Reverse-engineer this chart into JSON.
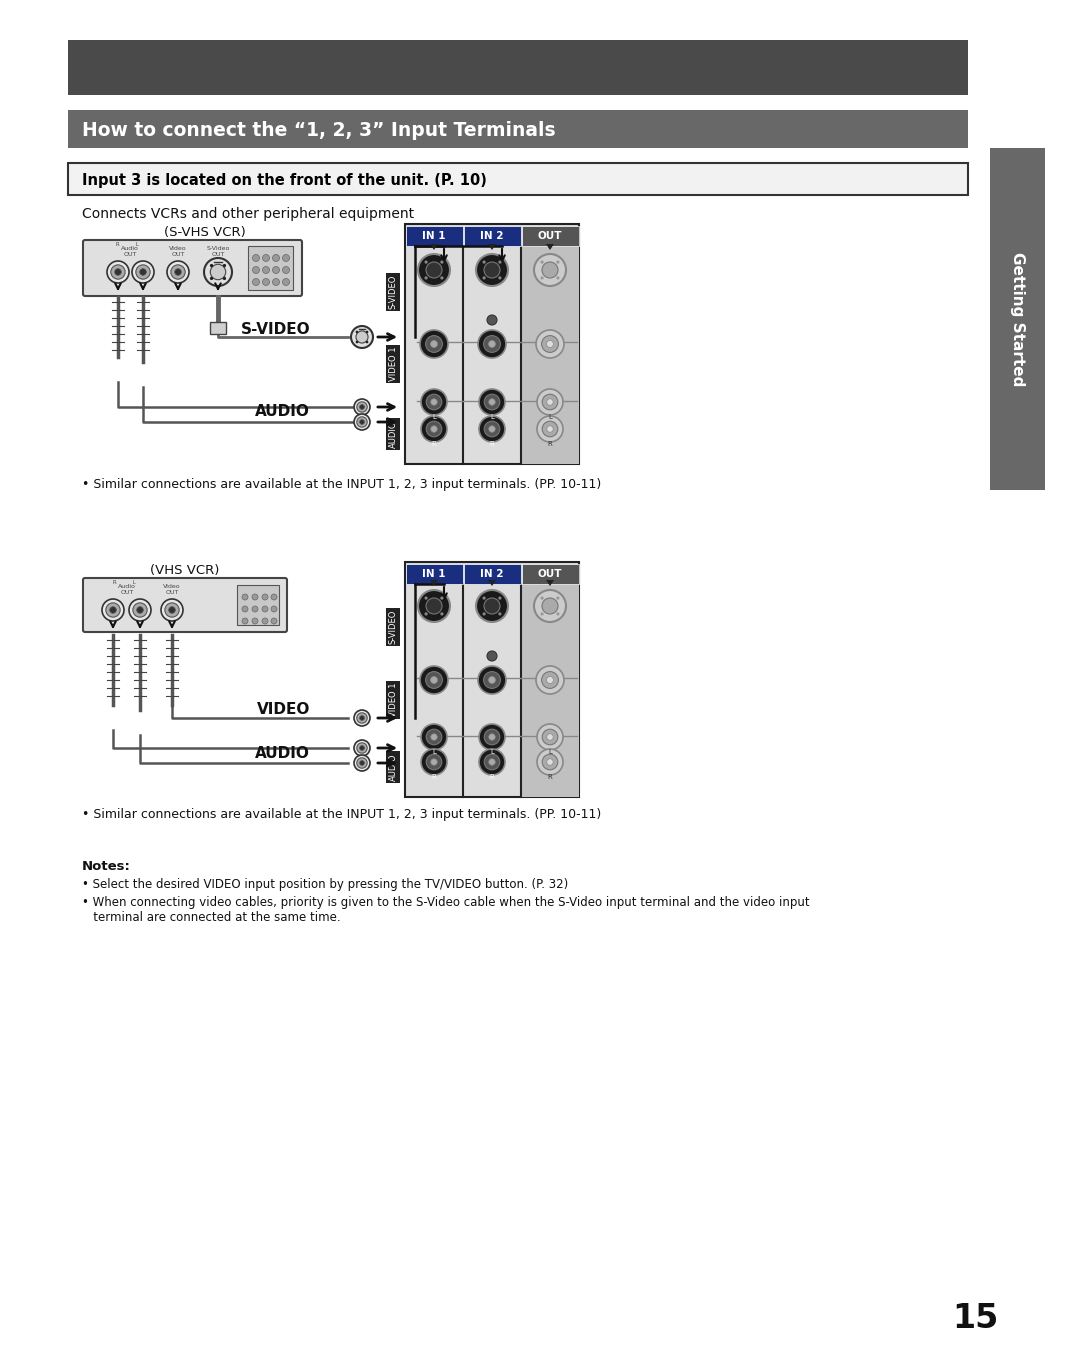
{
  "bg_color": "#ffffff",
  "page_number": "15",
  "top_banner_color": "#4a4a4a",
  "title_banner_color": "#686868",
  "title_text": "How to connect the “1, 2, 3” Input Terminals",
  "title_text_color": "#ffffff",
  "subtitle_box_text": "Input 3 is located on the front of the unit. (P. 10)",
  "intro_text": "Connects VCRs and other peripheral equipment",
  "side_tab_color": "#686868",
  "side_tab_text": "Getting Started",
  "section1_label": "(S-VHS VCR)",
  "section1_svideo_label": "S-VIDEO",
  "section1_audio_label": "AUDIO",
  "section1_note": "• Similar connections are available at the INPUT 1, 2, 3 input terminals. (PP. 10-11)",
  "section2_label": "(VHS VCR)",
  "section2_video_label": "VIDEO",
  "section2_audio_label": "AUDIO",
  "section2_note": "• Similar connections are available at the INPUT 1, 2, 3 input terminals. (PP. 10-11)",
  "notes_title": "Notes:",
  "note1": "• Select the desired VIDEO input position by pressing the TV/VIDEO button. (P. 32)",
  "note2": "• When connecting video cables, priority is given to the S-Video cable when the S-Video input terminal and the video input\n   terminal are connected at the same time.",
  "terminal_labels": [
    "IN 1",
    "IN 2",
    "OUT"
  ],
  "in1_header_color": "#1a2e80",
  "in2_header_color": "#1a2e80",
  "out_header_color": "#555555"
}
